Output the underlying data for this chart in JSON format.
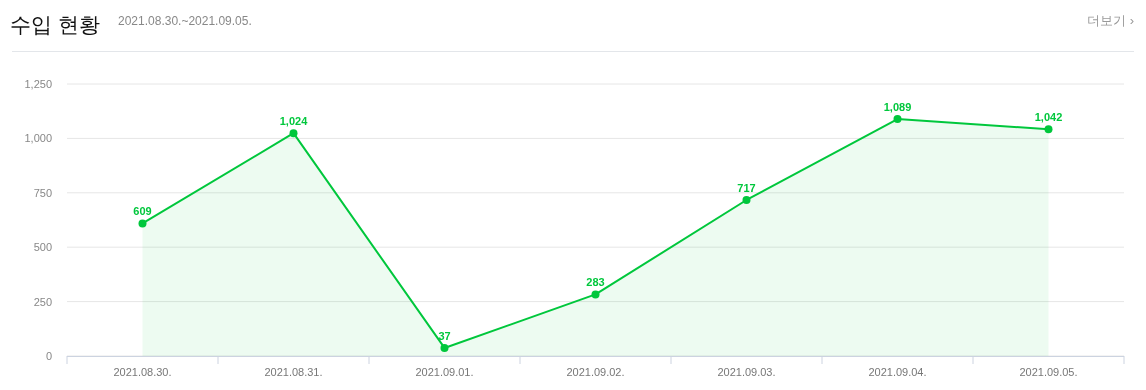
{
  "chart_data": {
    "type": "area",
    "title": "수입 현황",
    "subtitle": "2021.08.30.~2021.09.05.",
    "annotations": [
      "더보기 ›"
    ],
    "categories": [
      "2021.08.30.",
      "2021.08.31.",
      "2021.09.01.",
      "2021.09.02.",
      "2021.09.03.",
      "2021.09.04.",
      "2021.09.05."
    ],
    "series": [
      {
        "color": "#00c73c",
        "values": [
          609,
          1024,
          37,
          283,
          717,
          1089,
          1042
        ],
        "value_labels": [
          "609",
          "1,024",
          "37",
          "283",
          "717",
          "1,089",
          "1,042"
        ]
      }
    ],
    "ylim": [
      0,
      1250
    ],
    "yticks": [
      0,
      {
        "value": 250,
        "label": "250"
      },
      {
        "value": 500,
        "label": "500"
      },
      {
        "value": 750,
        "label": "750"
      },
      {
        "value": 1000,
        "label": "1,000"
      },
      {
        "value": 1250,
        "label": "1,250"
      }
    ],
    "grid": "y",
    "marker": "circle",
    "line_style": "solid",
    "data_labels": true
  }
}
